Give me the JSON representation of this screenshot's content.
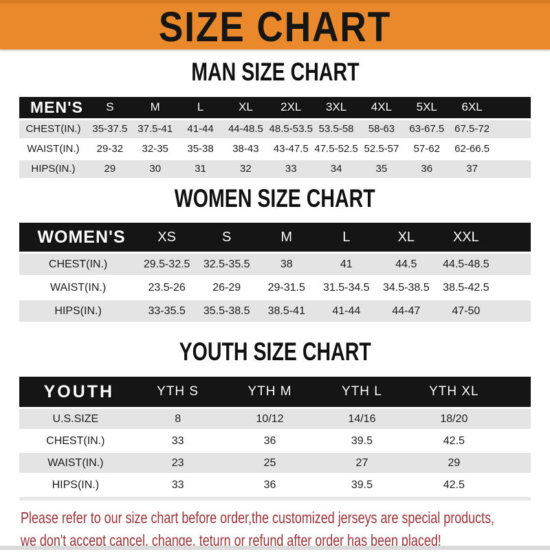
{
  "banner": {
    "title": "SIZE CHART"
  },
  "sections": [
    {
      "heading": "MAN SIZE CHART",
      "header_label": "MEN'S",
      "columns": [
        "S",
        "M",
        "L",
        "XL",
        "2XL",
        "3XL",
        "4XL",
        "5XL",
        "6XL"
      ],
      "rows": [
        {
          "label": "CHEST(IN.)",
          "values": [
            "35-37.5",
            "37.5-41",
            "41-44",
            "44-48.5",
            "48.5-53.5",
            "53.5-58",
            "58-63",
            "63-67.5",
            "67.5-72"
          ]
        },
        {
          "label": "WAIST(IN.)",
          "values": [
            "29-32",
            "32-35",
            "35-38",
            "38-43",
            "43-47.5",
            "47.5-52.5",
            "52.5-57",
            "57-62",
            "62-66.5"
          ]
        },
        {
          "label": "HIPS(IN.)",
          "values": [
            "29",
            "30",
            "31",
            "32",
            "33",
            "34",
            "35",
            "36",
            "37"
          ]
        }
      ]
    },
    {
      "heading": "WOMEN SIZE CHART",
      "header_label": "WOMEN'S",
      "columns": [
        "XS",
        "S",
        "M",
        "L",
        "XL",
        "XXL"
      ],
      "rows": [
        {
          "label": "CHEST(IN.)",
          "values": [
            "29.5-32.5",
            "32.5-35.5",
            "38",
            "41",
            "44.5",
            "44.5-48.5"
          ]
        },
        {
          "label": "WAIST(IN.)",
          "values": [
            "23.5-26",
            "26-29",
            "29-31.5",
            "31.5-34.5",
            "34.5-38.5",
            "38.5-42.5"
          ]
        },
        {
          "label": "HIPS(IN.)",
          "values": [
            "33-35.5",
            "35.5-38.5",
            "38.5-41",
            "41-44",
            "44-47",
            "47-50"
          ]
        }
      ]
    },
    {
      "heading": "YOUTH SIZE CHART",
      "header_label": "YOUTH",
      "columns": [
        "YTH S",
        "YTH M",
        "YTH L",
        "YTH XL"
      ],
      "rows": [
        {
          "label": "U.S.SIZE",
          "values": [
            "8",
            "10/12",
            "14/16",
            "18/20"
          ]
        },
        {
          "label": "CHEST(IN.)",
          "values": [
            "33",
            "36",
            "39.5",
            "42.5"
          ]
        },
        {
          "label": "WAIST(IN.)",
          "values": [
            "23",
            "25",
            "27",
            "29"
          ]
        },
        {
          "label": "HIPS(IN.)",
          "values": [
            "33",
            "36",
            "39.5",
            "42.5"
          ]
        }
      ]
    }
  ],
  "footer": {
    "line1": "Please refer to our size chart before order,the customized jerseys are special products,",
    "line2": "we don't accept cancel, change, teturn or refund after order has been placed!"
  },
  "colors": {
    "banner_orange": "#E9892B",
    "banner_orange_dark": "#D87C20",
    "band_black": "#151515",
    "row_gray": "#E4E4E4",
    "footer_red": "#9C3338"
  }
}
